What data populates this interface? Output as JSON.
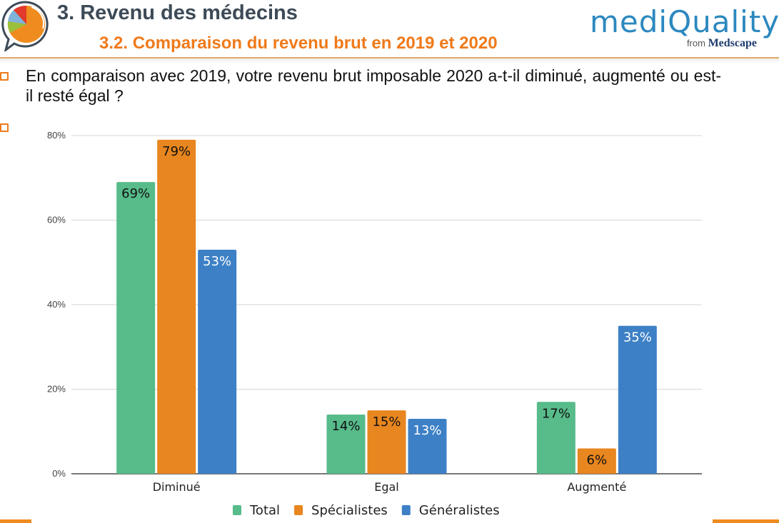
{
  "header": {
    "title": "3. Revenu des médecins",
    "subtitle": "3.2. Comparaison du revenu brut en 2019 et 2020",
    "brand_name": "mediQuality",
    "brand_from": "from",
    "brand_medscape": "Medscape",
    "logo_icon": "pie-chart-speech-bubble-icon"
  },
  "question": {
    "text": "En comparaison avec 2019, votre revenu brut imposable 2020 a-t-il diminué, augmenté ou est-il resté égal ?"
  },
  "colors": {
    "accent": "#ef7a1a",
    "title": "#3d4a57",
    "total": "#57bb8a",
    "specialistes": "#e8861f",
    "generalistes": "#3d80c6"
  },
  "chart_data": {
    "type": "bar",
    "title": "",
    "xlabel": "",
    "ylabel": "",
    "categories": [
      "Diminué",
      "Egal",
      "Augmenté"
    ],
    "series": [
      {
        "name": "Total",
        "color": "#57bb8a",
        "label_color": "#111111",
        "values": [
          69,
          14,
          17
        ]
      },
      {
        "name": "Spécialistes",
        "color": "#e8861f",
        "label_color": "#111111",
        "values": [
          79,
          15,
          6
        ]
      },
      {
        "name": "Généralistes",
        "color": "#3d80c6",
        "label_color": "#ffffff",
        "values": [
          53,
          13,
          35
        ]
      }
    ],
    "ylim": [
      0,
      80
    ],
    "yticks": [
      0,
      20,
      40,
      60,
      80
    ],
    "ytick_labels": [
      "0%",
      "20%",
      "40%",
      "60%",
      "80%"
    ],
    "value_suffix": "%",
    "grid": true,
    "legend": "bottom"
  }
}
